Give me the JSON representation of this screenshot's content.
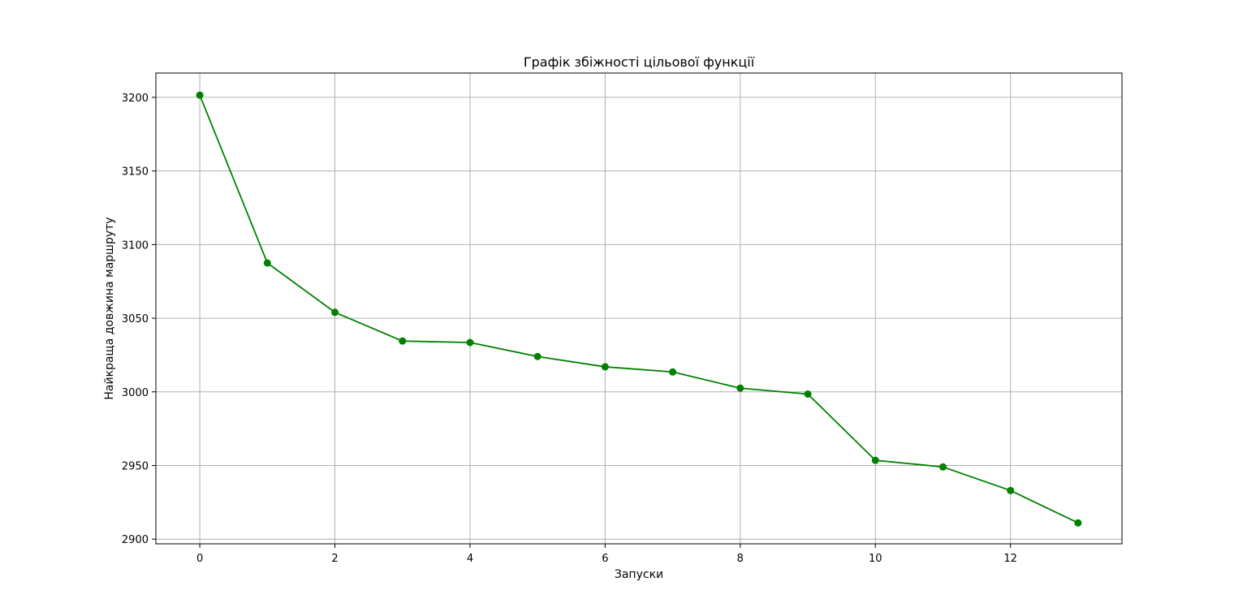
{
  "chart_data": {
    "type": "line",
    "title": "Графік збіжності цільової функції",
    "xlabel": "Запуски",
    "ylabel": "Найкраща довжина маршруту",
    "x": [
      0,
      1,
      2,
      3,
      4,
      5,
      6,
      7,
      8,
      9,
      10,
      11,
      12,
      13
    ],
    "series": [
      {
        "values": [
          3201.5,
          3087.5,
          3054,
          3034.5,
          3033.5,
          3024,
          3017,
          3013.5,
          3002.5,
          2998.5,
          2953.5,
          2949,
          2933,
          2911
        ],
        "color": "#008000",
        "marker": "circle"
      }
    ],
    "xlim": [
      -0.65,
      13.65
    ],
    "ylim": [
      2896.8,
      3216.5
    ],
    "xticks": [
      0,
      2,
      4,
      6,
      8,
      10,
      12
    ],
    "yticks": [
      2900,
      2950,
      3000,
      3050,
      3100,
      3150,
      3200
    ],
    "grid": true,
    "legend": false
  }
}
